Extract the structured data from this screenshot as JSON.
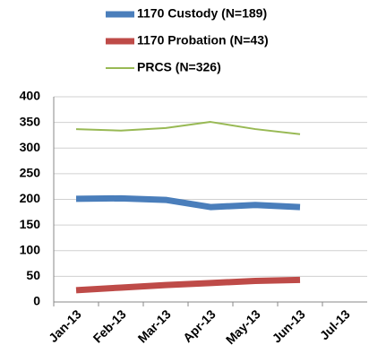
{
  "chart_data": {
    "type": "line",
    "categories": [
      "Jan-13",
      "Feb-13",
      "Mar-13",
      "Apr-13",
      "May-13",
      "Jun-13",
      "Jul-13"
    ],
    "series": [
      {
        "name": "1170 Custody (N=189)",
        "color": "#4a7ebb",
        "width": 7,
        "values": [
          201,
          202,
          199,
          185,
          189,
          185,
          null
        ]
      },
      {
        "name": "1170 Probation (N=43)",
        "color": "#be4b48",
        "width": 7,
        "values": [
          23,
          28,
          33,
          37,
          41,
          43,
          null
        ]
      },
      {
        "name": "PRCS (N=326)",
        "color": "#98b954",
        "width": 2,
        "values": [
          337,
          334,
          339,
          351,
          337,
          327,
          null
        ]
      }
    ],
    "ylim": [
      0,
      400
    ],
    "yticks": [
      0,
      50,
      100,
      150,
      200,
      250,
      300,
      350,
      400
    ],
    "grid": true,
    "legend": "top"
  }
}
